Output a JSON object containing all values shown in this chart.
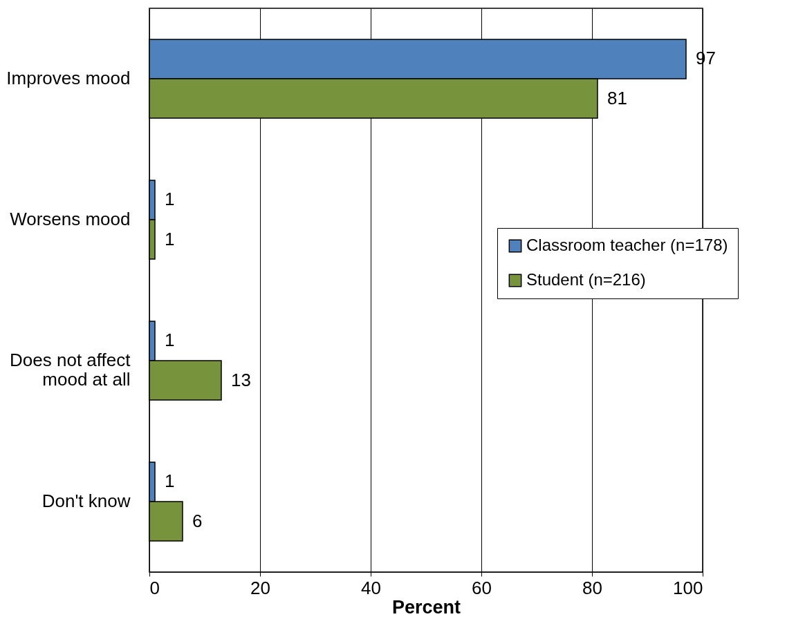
{
  "chart_data": {
    "type": "bar",
    "orientation": "horizontal",
    "xlabel": "Percent",
    "categories": [
      "Improves mood",
      "Worsens mood",
      "Does not affect mood at all",
      "Don't know"
    ],
    "series": [
      {
        "name": "Classroom teacher (n=178)",
        "color": "#4f81bd",
        "values": [
          97,
          1,
          1,
          1
        ]
      },
      {
        "name": "Student (n=216)",
        "color": "#77933c",
        "values": [
          81,
          1,
          13,
          6
        ]
      }
    ],
    "xlim": [
      0,
      100
    ],
    "xticks": [
      0,
      20,
      40,
      60,
      80,
      100
    ],
    "grid": "x",
    "legend": "right",
    "data_labels": true
  }
}
